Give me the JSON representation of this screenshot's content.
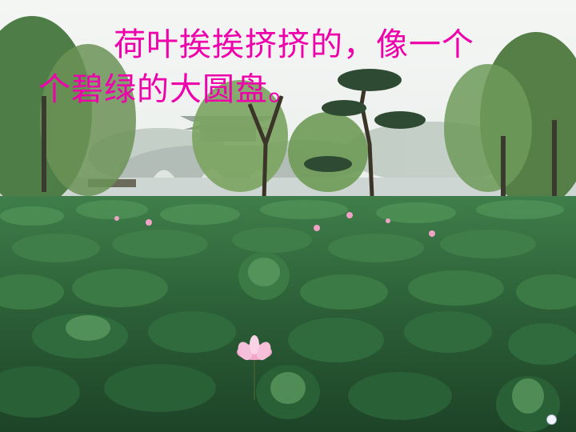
{
  "slide": {
    "caption_line1": "荷叶挨挨挤挤的，像一个",
    "caption_line2": "个碧绿的大圆盘。",
    "caption_color": "#ee00aa"
  },
  "photo": {
    "subject": "lotus pond with willows, pavilion bridge and lake in mist",
    "colors": {
      "sky": "#eef1ee",
      "water": "#c9d3cf",
      "leaves": "#2f6b3c",
      "flower": "#f2a6c8"
    }
  },
  "nav": {
    "icon": "circle-dot-icon"
  }
}
